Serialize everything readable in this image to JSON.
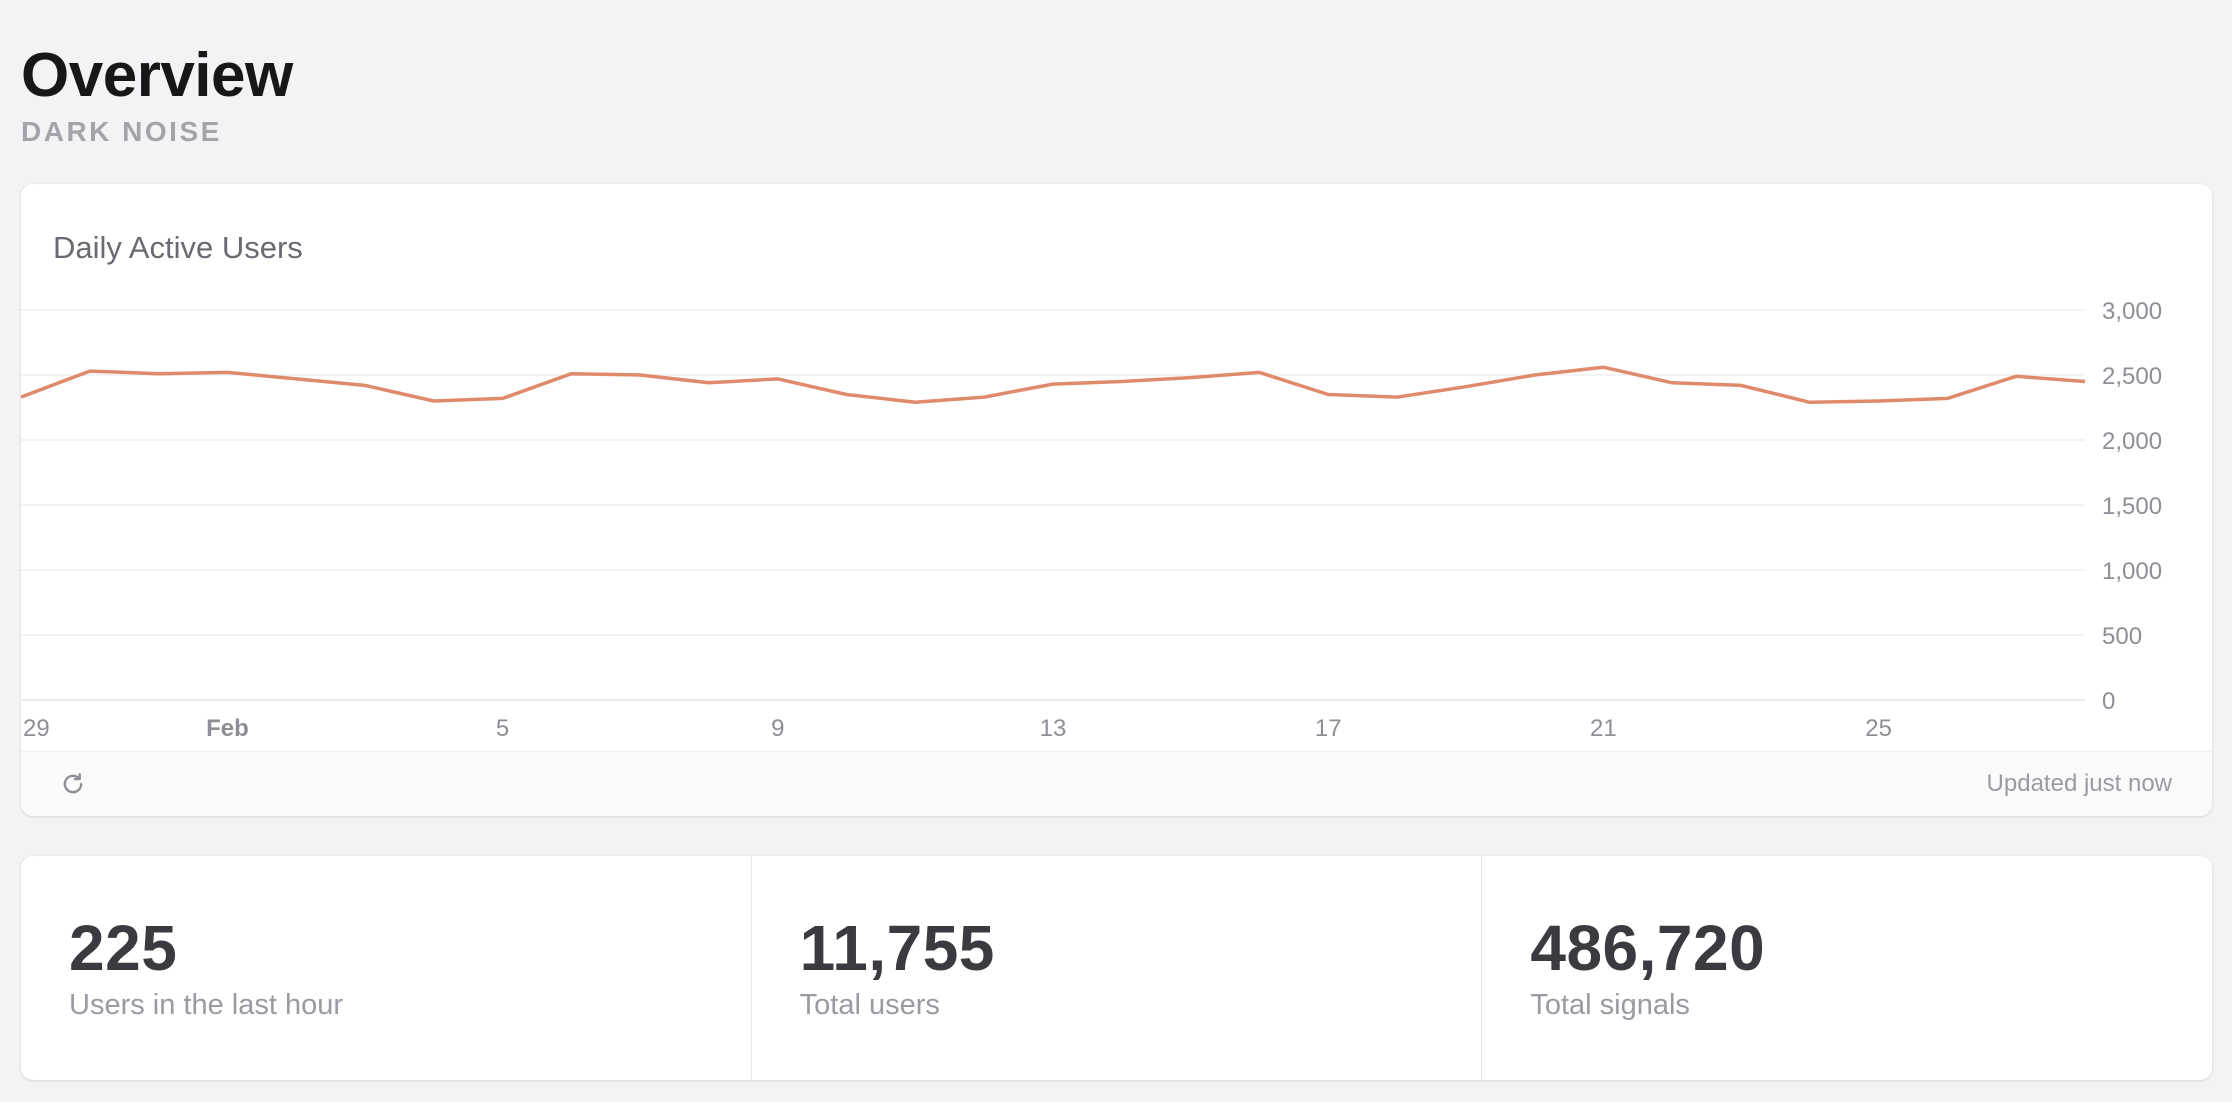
{
  "header": {
    "title": "Overview",
    "subtitle": "DARK NOISE"
  },
  "chart_card": {
    "title": "Daily Active Users",
    "updated": "Updated just now",
    "refresh_icon": "refresh-icon"
  },
  "chart_data": {
    "type": "line",
    "title": "Daily Active Users",
    "xlabel": "",
    "ylabel": "",
    "x_tick_labels": [
      "29",
      "Feb",
      "5",
      "9",
      "13",
      "17",
      "21",
      "25"
    ],
    "y_tick_labels": [
      "3,000",
      "2,500",
      "2,000",
      "1,500",
      "1,000",
      "500",
      "0"
    ],
    "ylim": [
      0,
      3000
    ],
    "grid": true,
    "y_axis_position": "right",
    "line_color": "#e08a6c",
    "series": [
      {
        "values": [
          2330,
          2530,
          2510,
          2520,
          2470,
          2420,
          2300,
          2320,
          2510,
          2500,
          2440,
          2470,
          2350,
          2290,
          2330,
          2430,
          2450,
          2480,
          2520,
          2350,
          2330,
          2410,
          2500,
          2560,
          2440,
          2420,
          2290,
          2300,
          2320,
          2490,
          2450
        ]
      }
    ]
  },
  "stats": [
    {
      "value": "225",
      "label": "Users in the last hour"
    },
    {
      "value": "11,755",
      "label": "Total users"
    },
    {
      "value": "486,720",
      "label": "Total signals"
    }
  ]
}
